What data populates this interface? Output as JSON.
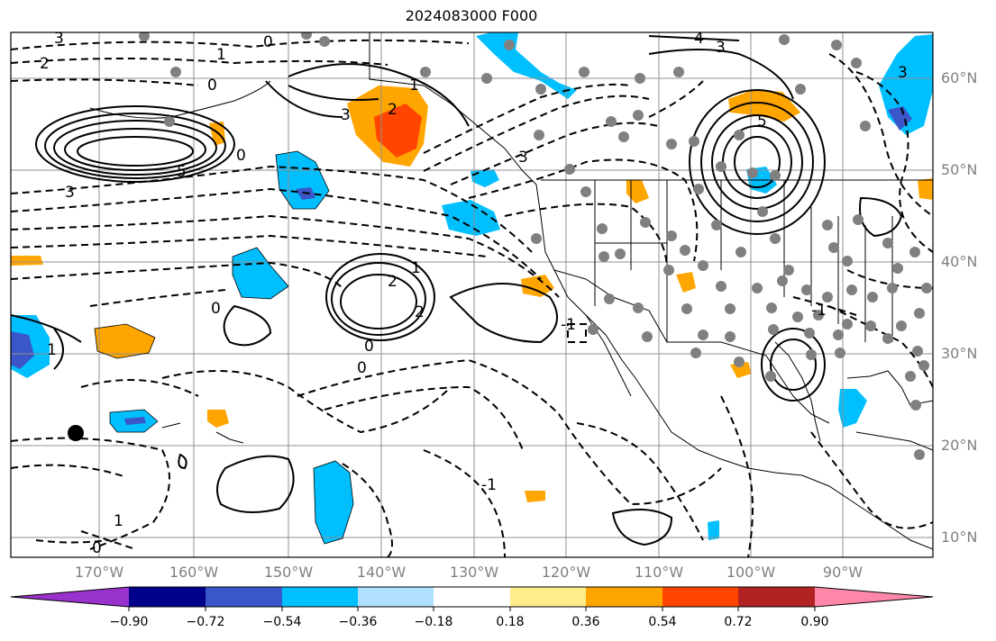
{
  "map": {
    "title": "2024083000 F000",
    "lat_labels": [
      "60°N",
      "50°N",
      "40°N",
      "30°N",
      "20°N",
      "10°N"
    ],
    "lon_labels": [
      "170°W",
      "160°W",
      "150°W",
      "140°W",
      "130°W",
      "120°W",
      "110°W",
      "100°W",
      "90°W"
    ],
    "contour_labels": [
      "3",
      "2",
      "1",
      "0",
      "0",
      "3",
      "2",
      "1",
      "5",
      "3",
      "0",
      "3",
      "5",
      "2",
      "1",
      "0",
      "2",
      "-1",
      "1",
      "0",
      "0",
      "-1",
      "1",
      "0",
      "-1",
      "3",
      "4",
      "3"
    ],
    "colorbar": {
      "ticks": [
        "−0.90",
        "−0.72",
        "−0.54",
        "−0.36",
        "−0.18",
        "0.18",
        "0.36",
        "0.54",
        "0.72",
        "0.90"
      ],
      "colors": [
        "#9932cc",
        "#00008b",
        "#3a56c8",
        "#00bfff",
        "#b0e0ff",
        "#ffffff",
        "#ffec8b",
        "#ffa500",
        "#ff4500",
        "#b22222",
        "#ff88aa"
      ]
    }
  }
}
